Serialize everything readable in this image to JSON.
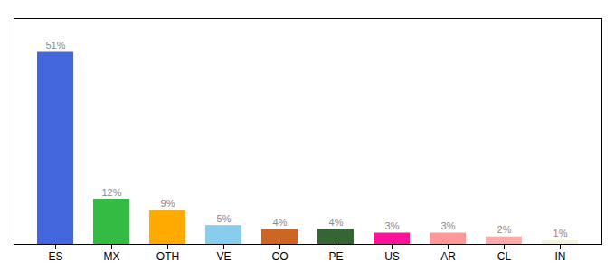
{
  "chart_data": {
    "type": "bar",
    "categories": [
      "ES",
      "MX",
      "OTH",
      "VE",
      "CO",
      "PE",
      "US",
      "AR",
      "CL",
      "IN"
    ],
    "values": [
      51,
      12,
      9,
      5,
      4,
      4,
      3,
      3,
      2,
      1
    ],
    "value_labels": [
      "51%",
      "12%",
      "9%",
      "5%",
      "4%",
      "4%",
      "3%",
      "3%",
      "2%",
      "1%"
    ],
    "colors": [
      "#4466dd",
      "#33bb44",
      "#ffaa00",
      "#88ccee",
      "#cc6622",
      "#336633",
      "#ff1199",
      "#ff9999",
      "#ffaaaa",
      "#f5f5dc"
    ],
    "ylim": [
      0,
      60
    ],
    "data_labels": true,
    "tick_labels": "x",
    "grid": false
  }
}
